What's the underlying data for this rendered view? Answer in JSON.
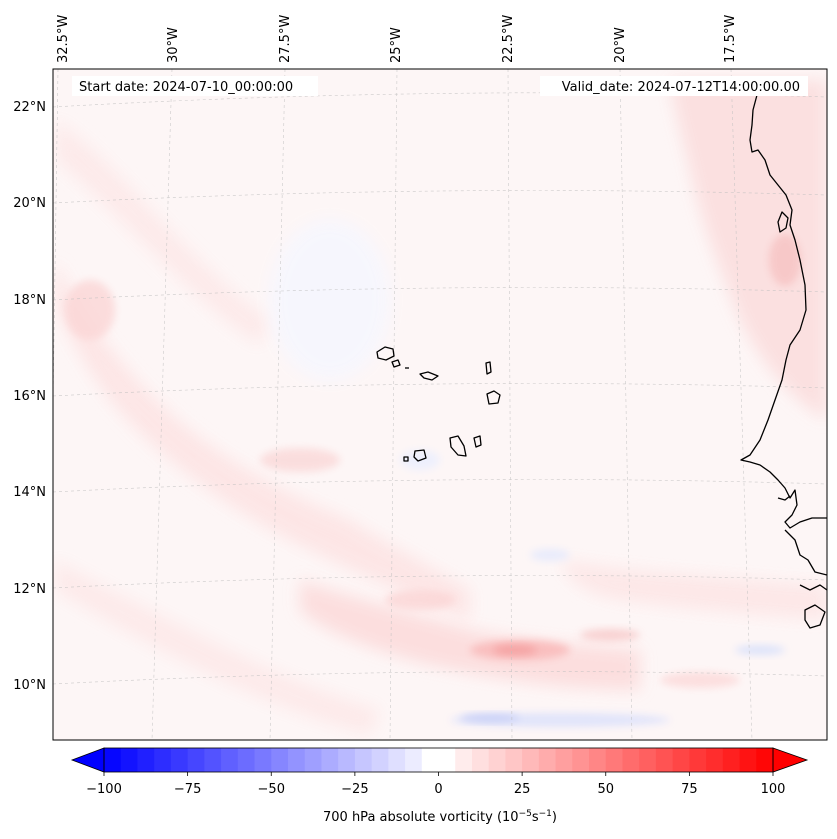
{
  "map": {
    "start_date": "Start date: 2024-07-10_00:00:00",
    "valid_date": "Valid_date: 2024-07-12T14:00:00.00",
    "lon_labels": [
      "32.5°W",
      "30°W",
      "27.5°W",
      "25°W",
      "22.5°W",
      "20°W",
      "17.5°W"
    ],
    "lat_labels": [
      "22°N",
      "20°N",
      "18°N",
      "16°N",
      "14°N",
      "12°N",
      "10°N"
    ],
    "region": "Cabo Verde islands and West African coast"
  },
  "colorbar": {
    "label": "700 hPa absolute vorticity (10",
    "label_exp1": "−5",
    "label_mid": "s",
    "label_exp2": "−1",
    "label_end": ")",
    "ticks": [
      "−100",
      "−75",
      "−50",
      "−25",
      "0",
      "25",
      "50",
      "75",
      "100"
    ],
    "min": -100,
    "max": 100,
    "negative_color": "#0000ff",
    "positive_color": "#ff0000"
  }
}
